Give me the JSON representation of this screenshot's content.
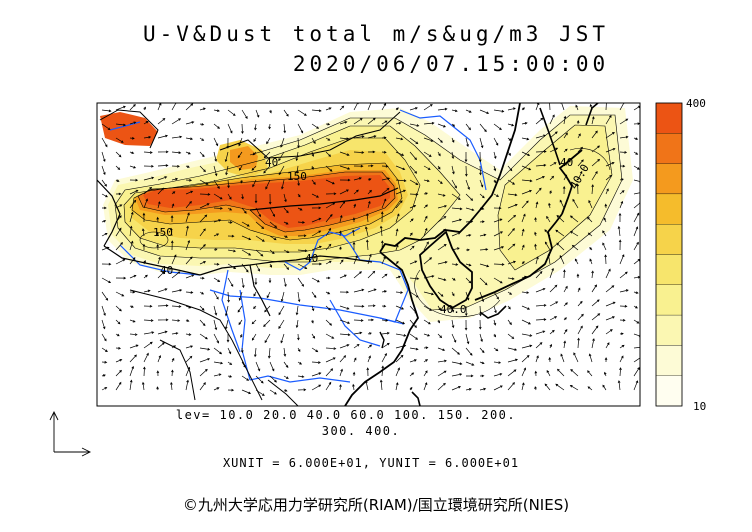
{
  "title": "U-V&Dust total m/s&ug/m3 JST",
  "timestamp": "2020/06/07.15:00:00",
  "levels_label": "lev=  10.0  20.0  40.0  60.0  100.  150.  200.",
  "levels_label_cont": "300.  400.",
  "unit_label": "XUNIT = 6.000E+01, YUNIT = 6.000E+01",
  "credit": "©九州大学応用力学研究所(RIAM)/国立環境研究所(NIES)",
  "colorbar": {
    "max_label": "400",
    "min_label": "10",
    "levels": [
      10,
      20,
      40,
      60,
      100,
      150,
      200,
      300,
      400
    ],
    "colors": [
      "#fffef0",
      "#fdfbd6",
      "#fbf7b2",
      "#f9f190",
      "#f7e56c",
      "#f6d34a",
      "#f5bc2c",
      "#f49a1e",
      "#f07418",
      "#ec5414"
    ]
  },
  "contour_labels": {
    "l150a": "150",
    "l150b": "150",
    "l40a": "40",
    "l40b": "40",
    "l40c": "40",
    "l40d": "40.0",
    "l40e": "40.0",
    "l40f": "40"
  },
  "colors": {
    "coast": "#000000",
    "river": "#1a5cff",
    "frame": "#000000"
  }
}
